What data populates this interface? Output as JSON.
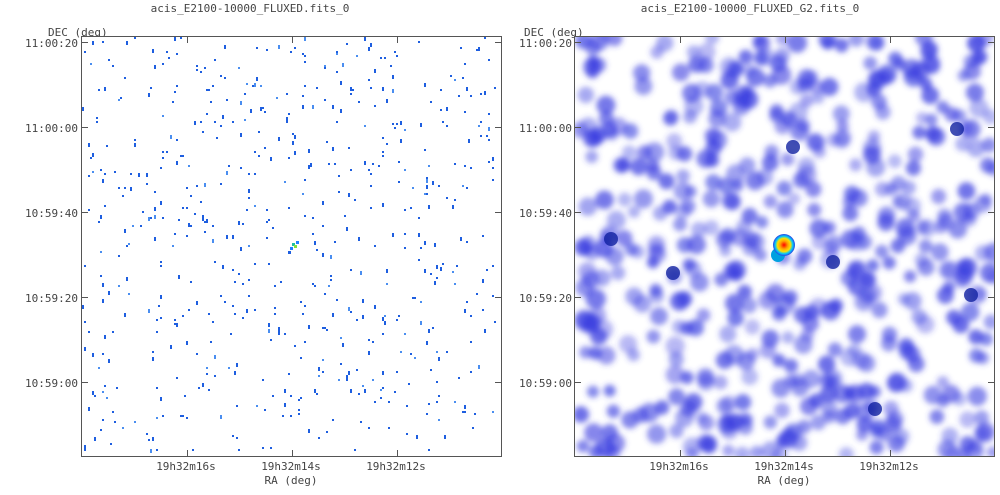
{
  "panels": [
    {
      "title": "acis_E2100-10000_FLUXED.fits_0",
      "y_axis_label": "DEC (deg)",
      "x_axis_label": "RA (deg)",
      "y_ticks": [
        "11:00:20",
        "11:00:00",
        "10:59:40",
        "10:59:20",
        "10:59:00"
      ],
      "x_ticks": [
        "19h32m16s",
        "19h32m14s",
        "19h32m12s"
      ],
      "style": "sparse counts image",
      "background": "#ffffff",
      "pixel_color": "#1e5fe0"
    },
    {
      "title": "acis_E2100-10000_FLUXED_G2.fits_0",
      "y_axis_label": "DEC (deg)",
      "x_axis_label": "RA (deg)",
      "y_ticks": [
        "11:00:20",
        "11:00:00",
        "10:59:40",
        "10:59:20",
        "10:59:00"
      ],
      "x_ticks": [
        "19h32m16s",
        "19h32m14s",
        "19h32m12s"
      ],
      "style": "gaussian smoothed image",
      "background": "#ffffff",
      "blob_color": "#3a3ee0",
      "peak_colors": [
        "#ff0000",
        "#ffd000",
        "#00c0ff"
      ]
    }
  ]
}
